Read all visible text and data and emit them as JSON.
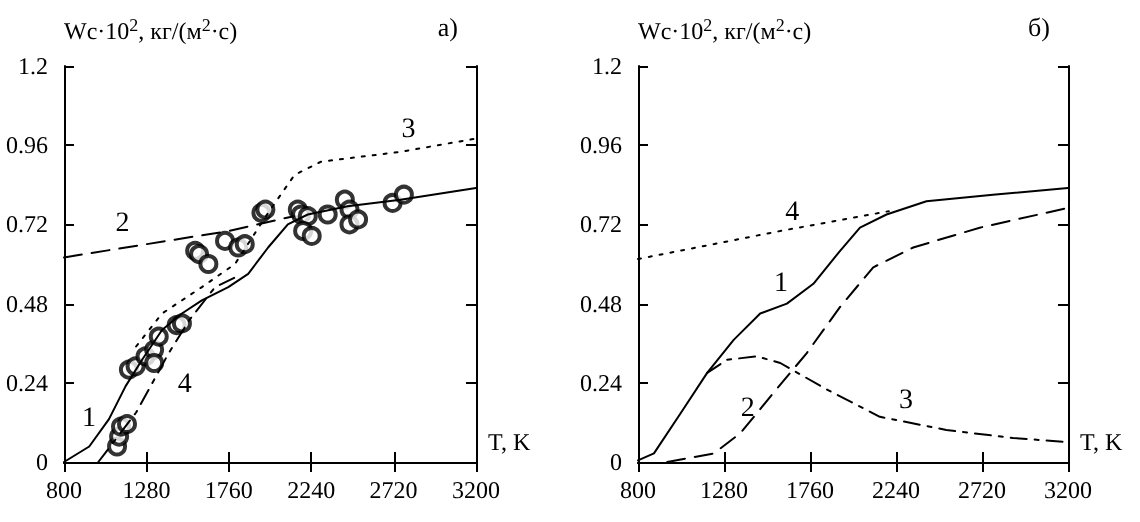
{
  "chart_data": [
    {
      "type": "line",
      "title": "а)",
      "xlabel": "T, K",
      "ylabel": "Wc·10$^{2}$, кг/(м$^{2}$·с)",
      "xlim": [
        800,
        3200
      ],
      "xticks": [
        800,
        1280,
        1760,
        2240,
        2720,
        3200
      ],
      "ylim": [
        0,
        1.2
      ],
      "yticks": [
        0,
        0.24,
        0.48,
        0.72,
        0.96,
        1.2
      ],
      "grid": false,
      "series": [
        {
          "color": "#000000",
          "line_style": "solid",
          "marker": "none",
          "x": [
            800,
            947,
            1062,
            1159,
            1255,
            1371,
            1487,
            1603,
            1757,
            1873,
            1989,
            2104,
            2220,
            2452,
            2760,
            3200
          ],
          "values": [
            0,
            0.047,
            0.13,
            0.23,
            0.31,
            0.4,
            0.45,
            0.49,
            0.53,
            0.57,
            0.65,
            0.72,
            0.75,
            0.775,
            0.795,
            0.83
          ]
        },
        {
          "color": "#000000",
          "line_style": "dashed",
          "marker": "none",
          "x": [
            800,
            1280,
            1760,
            2140
          ],
          "values": [
            0.62,
            0.66,
            0.7,
            0.745
          ]
        },
        {
          "color": "#000000",
          "line_style": "dotted",
          "marker": "none",
          "x": [
            1220,
            1371,
            1603,
            1796,
            1989,
            2143,
            2297,
            2760,
            3200
          ],
          "values": [
            0.35,
            0.45,
            0.53,
            0.6,
            0.755,
            0.87,
            0.91,
            0.94,
            0.98
          ]
        },
        {
          "color": "#000000",
          "line_style": "dashdot",
          "marker": "none",
          "x": [
            1000,
            1220,
            1410,
            1530,
            1680,
            1800
          ],
          "values": [
            0,
            0.15,
            0.33,
            0.43,
            0.53,
            0.56
          ]
        },
        {
          "type": "scatter",
          "color": "#000000",
          "marker": "circle",
          "x": [
            1109,
            1121,
            1132,
            1167,
            1178,
            1217,
            1275,
            1325,
            1325,
            1352,
            1456,
            1487,
            1564,
            1587,
            1641,
            1738,
            1815,
            1853,
            1950,
            1973,
            2162,
            2181,
            2220,
            2193,
            2243,
            2336,
            2436,
            2463,
            2463,
            2513,
            2714,
            2780
          ],
          "values": [
            0.047,
            0.077,
            0.107,
            0.115,
            0.28,
            0.29,
            0.32,
            0.34,
            0.3,
            0.38,
            0.415,
            0.42,
            0.64,
            0.63,
            0.6,
            0.67,
            0.65,
            0.66,
            0.755,
            0.765,
            0.765,
            0.75,
            0.745,
            0.7,
            0.685,
            0.75,
            0.795,
            0.765,
            0.72,
            0.735,
            0.785,
            0.81
          ]
        }
      ],
      "annotations": [
        {
          "text": "1",
          "x": 1062,
          "y": 0.13
        },
        {
          "text": "2",
          "x": 1280,
          "y": 0.66
        },
        {
          "text": "3",
          "x": 2760,
          "y": 0.94
        },
        {
          "text": "4",
          "x": 1410,
          "y": 0.33
        }
      ]
    },
    {
      "type": "line",
      "title": "б)",
      "xlabel": "T, K",
      "ylabel": "Wc·10$^{2}$, кг/(м$^{2}$·с)",
      "xlim": [
        800,
        3200
      ],
      "xticks": [
        800,
        1280,
        1760,
        2240,
        2720,
        3200
      ],
      "ylim": [
        0,
        1.2
      ],
      "yticks": [
        0,
        0.24,
        0.48,
        0.72,
        0.96,
        1.2
      ],
      "grid": false,
      "series": [
        {
          "color": "#000000",
          "line_style": "solid",
          "marker": "none",
          "x": [
            800,
            889,
            1037,
            1186,
            1334,
            1482,
            1631,
            1779,
            1928,
            2039,
            2187,
            2410,
            2781,
            3200
          ],
          "values": [
            0.005,
            0.026,
            0.147,
            0.27,
            0.37,
            0.45,
            0.48,
            0.54,
            0.64,
            0.71,
            0.75,
            0.79,
            0.81,
            0.83
          ]
        },
        {
          "color": "#000000",
          "line_style": "dashed",
          "marker": "none",
          "x": [
            963,
            1223,
            1371,
            1557,
            1742,
            1928,
            2113,
            2336,
            2707,
            3200
          ],
          "values": [
            0,
            0.026,
            0.087,
            0.21,
            0.33,
            0.47,
            0.59,
            0.65,
            0.71,
            0.77
          ]
        },
        {
          "color": "#000000",
          "line_style": "dashdot",
          "marker": "none",
          "x": [
            1186,
            1297,
            1464,
            1594,
            1853,
            2150,
            2521,
            2892,
            3200
          ],
          "values": [
            0.27,
            0.31,
            0.32,
            0.3,
            0.22,
            0.137,
            0.097,
            0.073,
            0.06
          ]
        },
        {
          "color": "#000000",
          "line_style": "dotted",
          "marker": "none",
          "x": [
            800,
            1594,
            2150,
            2200
          ],
          "values": [
            0.615,
            0.7,
            0.755,
            0.76
          ]
        }
      ],
      "annotations": [
        {
          "text": "1",
          "x": 1631,
          "y": 0.48
        },
        {
          "text": "2",
          "x": 1557,
          "y": 0.21
        },
        {
          "text": "3",
          "x": 2150,
          "y": 0.137
        },
        {
          "text": "4",
          "x": 1594,
          "y": 0.7
        }
      ]
    }
  ]
}
